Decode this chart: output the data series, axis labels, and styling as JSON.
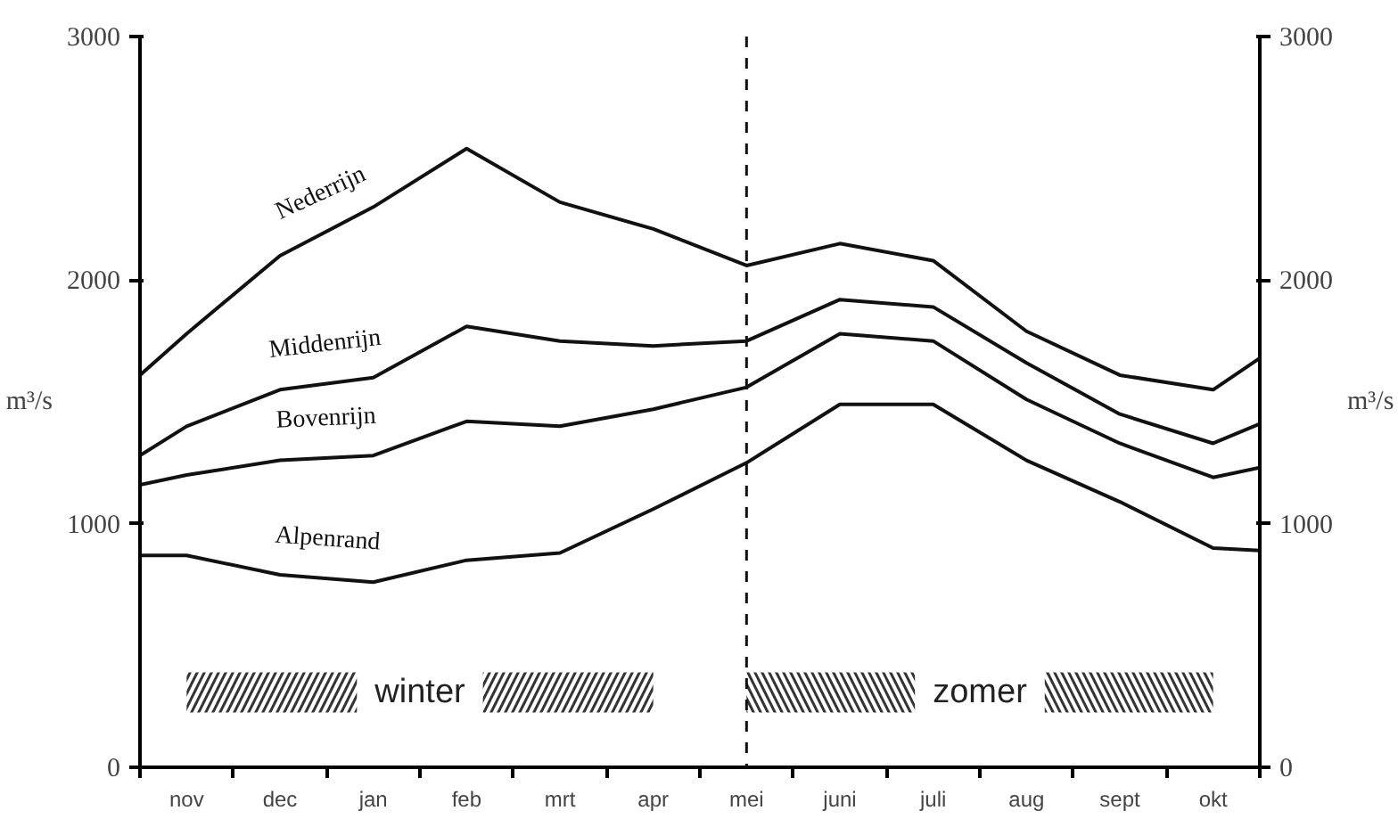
{
  "chart_data": {
    "type": "line",
    "categories": [
      null,
      "nov",
      null,
      "dec",
      null,
      "jan",
      null,
      "feb",
      null,
      "mrt",
      null,
      "apr",
      null,
      "mei",
      null,
      "juni",
      null,
      "juli",
      null,
      "aug",
      null,
      "sept",
      null,
      "okt",
      null
    ],
    "series": [
      {
        "name": "Nederrijn",
        "color": "#111111",
        "values": [
          1610,
          1780,
          null,
          2100,
          null,
          2300,
          null,
          2540,
          null,
          2320,
          null,
          2210,
          null,
          2060,
          null,
          2150,
          null,
          2080,
          null,
          1790,
          null,
          1610,
          null,
          1550,
          1680
        ]
      },
      {
        "name": "Middenrijn",
        "color": "#111111",
        "values": [
          1280,
          1400,
          null,
          1550,
          null,
          1600,
          null,
          1810,
          null,
          1750,
          null,
          1730,
          null,
          1750,
          null,
          1920,
          null,
          1890,
          null,
          1660,
          null,
          1450,
          null,
          1330,
          1410
        ]
      },
      {
        "name": "Bovenrijn",
        "color": "#111111",
        "values": [
          1160,
          1200,
          null,
          1260,
          null,
          1280,
          null,
          1420,
          null,
          1400,
          null,
          1470,
          null,
          1560,
          null,
          1780,
          null,
          1750,
          null,
          1510,
          null,
          1330,
          null,
          1190,
          1230
        ]
      },
      {
        "name": "Alpenrand",
        "color": "#111111",
        "values": [
          870,
          870,
          null,
          790,
          null,
          760,
          null,
          850,
          null,
          880,
          null,
          1060,
          null,
          1250,
          null,
          1490,
          null,
          1490,
          null,
          1260,
          null,
          1090,
          null,
          900,
          890
        ]
      }
    ],
    "ylim": [
      0,
      3000
    ],
    "yticks": [
      0,
      1000,
      2000,
      3000
    ],
    "y2lim": [
      0,
      3000
    ],
    "y2ticks": [
      0,
      1000,
      2000,
      3000
    ],
    "ylabel": "m³/s",
    "y2label": "m³/s",
    "ref_lines": [
      {
        "axis": "x",
        "value": "mei",
        "color": "#111111",
        "line_style": "dashed"
      }
    ],
    "bands": [
      {
        "axis": "x",
        "from": "nov",
        "to": "apr",
        "label": "winter",
        "color": "#333333"
      },
      {
        "axis": "x",
        "from": "mei",
        "to": "okt",
        "label": "zomer",
        "color": "#333333"
      }
    ],
    "grid": false,
    "marker": "none",
    "line_style": "solid"
  }
}
